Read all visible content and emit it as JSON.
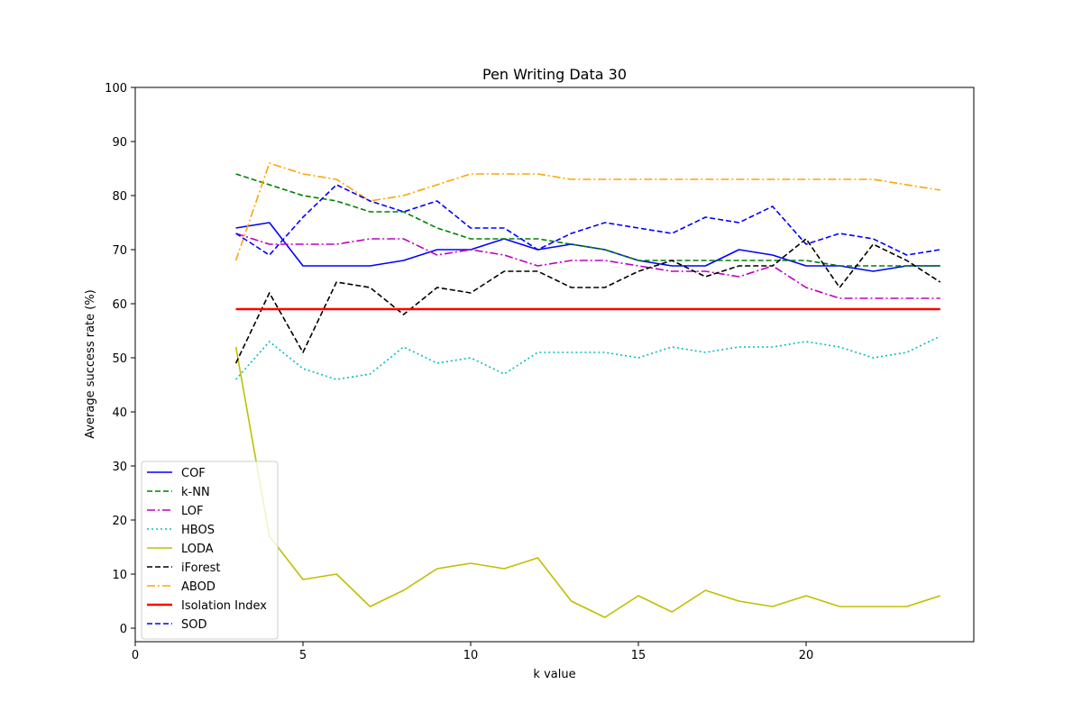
{
  "chart_data": {
    "type": "line",
    "title": "Pen Writing Data 30",
    "xlabel": "k value",
    "ylabel": "Average success rate (%)",
    "xlim": [
      0,
      25
    ],
    "ylim": [
      -2.5,
      100
    ],
    "xticks": [
      0,
      5,
      10,
      15,
      20
    ],
    "yticks": [
      0,
      10,
      20,
      30,
      40,
      50,
      60,
      70,
      80,
      90,
      100
    ],
    "legend_position": "lower-left",
    "grid": false,
    "x": [
      3,
      4,
      5,
      6,
      7,
      8,
      9,
      10,
      11,
      12,
      13,
      14,
      15,
      16,
      17,
      18,
      19,
      20,
      21,
      22,
      23,
      24
    ],
    "series": [
      {
        "name": "COF",
        "color": "#0000ff",
        "dash": "solid",
        "width": 1.6,
        "values": [
          74,
          75,
          67,
          67,
          67,
          68,
          70,
          70,
          72,
          70,
          71,
          70,
          68,
          67,
          67,
          70,
          69,
          67,
          67,
          66,
          67,
          67
        ]
      },
      {
        "name": "k-NN",
        "color": "#008000",
        "dash": "dashed",
        "width": 1.6,
        "values": [
          84,
          82,
          80,
          79,
          77,
          77,
          74,
          72,
          72,
          72,
          71,
          70,
          68,
          68,
          68,
          68,
          68,
          68,
          67,
          67,
          67,
          67
        ]
      },
      {
        "name": "LOF",
        "color": "#bf00bf",
        "dash": "dashdot",
        "width": 1.6,
        "values": [
          73,
          71,
          71,
          71,
          72,
          72,
          69,
          70,
          69,
          67,
          68,
          68,
          67,
          66,
          66,
          65,
          67,
          63,
          61,
          61,
          61,
          61
        ]
      },
      {
        "name": "HBOS",
        "color": "#00bfbf",
        "dash": "dotted",
        "width": 1.6,
        "values": [
          46,
          53,
          48,
          46,
          47,
          52,
          49,
          50,
          47,
          51,
          51,
          51,
          50,
          52,
          51,
          52,
          52,
          53,
          52,
          50,
          51,
          54
        ]
      },
      {
        "name": "LODA",
        "color": "#bfbf00",
        "dash": "solid",
        "width": 1.6,
        "values": [
          52,
          17,
          9,
          10,
          4,
          7,
          11,
          12,
          11,
          13,
          5,
          2,
          6,
          3,
          7,
          5,
          4,
          6,
          4,
          4,
          4,
          6
        ]
      },
      {
        "name": "iForest",
        "color": "#000000",
        "dash": "dashed",
        "width": 1.6,
        "values": [
          49,
          62,
          51,
          64,
          63,
          58,
          63,
          62,
          66,
          66,
          63,
          63,
          66,
          68,
          65,
          67,
          67,
          72,
          63,
          71,
          68,
          64
        ]
      },
      {
        "name": "ABOD",
        "color": "#ffa500",
        "dash": "dashdot",
        "width": 1.6,
        "values": [
          68,
          86,
          84,
          83,
          79,
          80,
          82,
          84,
          84,
          84,
          83,
          83,
          83,
          83,
          83,
          83,
          83,
          83,
          83,
          83,
          82,
          81
        ]
      },
      {
        "name": "Isolation Index",
        "color": "#ff0000",
        "dash": "solid",
        "width": 2.6,
        "values": [
          59,
          59,
          59,
          59,
          59,
          59,
          59,
          59,
          59,
          59,
          59,
          59,
          59,
          59,
          59,
          59,
          59,
          59,
          59,
          59,
          59,
          59
        ]
      },
      {
        "name": "SOD",
        "color": "#0000ff",
        "dash": "dashed",
        "width": 1.6,
        "values": [
          73,
          69,
          76,
          82,
          79,
          77,
          79,
          74,
          74,
          70,
          73,
          75,
          74,
          73,
          76,
          75,
          78,
          71,
          73,
          72,
          69,
          70
        ]
      }
    ]
  }
}
